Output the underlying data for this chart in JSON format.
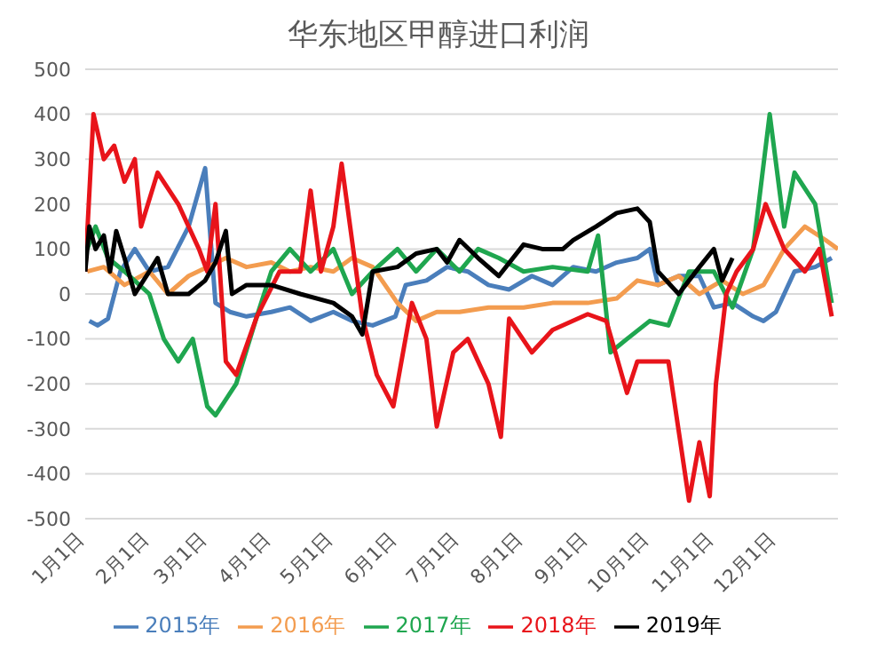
{
  "chart_data": {
    "type": "line",
    "title": "华东地区甲醇进口利润",
    "xlim": [
      "--01-01",
      "--12-31"
    ],
    "xticks": [
      {
        "value": "--01-01",
        "label": "1月1日"
      },
      {
        "value": "--02-01",
        "label": "2月1日"
      },
      {
        "value": "--03-01",
        "label": "3月1日"
      },
      {
        "value": "--04-01",
        "label": "4月1日"
      },
      {
        "value": "--05-01",
        "label": "5月1日"
      },
      {
        "value": "--06-01",
        "label": "6月1日"
      },
      {
        "value": "--07-01",
        "label": "7月1日"
      },
      {
        "value": "--08-01",
        "label": "8月1日"
      },
      {
        "value": "--09-01",
        "label": "9月1日"
      },
      {
        "value": "--10-01",
        "label": "10月1日"
      },
      {
        "value": "--11-01",
        "label": "11月1日"
      },
      {
        "value": "--12-01",
        "label": "12月1日"
      }
    ],
    "ylim": [
      -500,
      500
    ],
    "yticks": [
      -500,
      -400,
      -300,
      -200,
      -100,
      0,
      100,
      200,
      300,
      400,
      500
    ],
    "grid": "y",
    "legend": "bottom",
    "marker": "none",
    "line_style": "solid",
    "series": [
      {
        "name": "2015年",
        "color": "#4a7ebb",
        "x": [
          "--01-03",
          "--01-07",
          "--01-12",
          "--01-18",
          "--01-25",
          "--02-01",
          "--02-10",
          "--02-20",
          "--02-28",
          "--03-05",
          "--03-12",
          "--03-20",
          "--04-01",
          "--04-10",
          "--04-20",
          "--05-01",
          "--05-10",
          "--05-20",
          "--05-31",
          "--06-05",
          "--06-15",
          "--06-25",
          "--07-05",
          "--07-15",
          "--07-25",
          "--08-05",
          "--08-15",
          "--08-25",
          "--09-05",
          "--09-15",
          "--09-25",
          "--10-01",
          "--10-05",
          "--10-15",
          "--10-25",
          "--11-01",
          "--11-10",
          "--11-20",
          "--11-25",
          "--12-01",
          "--12-10",
          "--12-20",
          "--12-28"
        ],
        "values": [
          -60,
          -70,
          -55,
          50,
          100,
          50,
          60,
          150,
          280,
          -20,
          -40,
          -50,
          -40,
          -30,
          -60,
          -40,
          -60,
          -70,
          -50,
          20,
          30,
          60,
          50,
          20,
          10,
          40,
          20,
          60,
          50,
          70,
          80,
          100,
          20,
          40,
          40,
          -30,
          -20,
          -50,
          -60,
          -40,
          50,
          60,
          80
        ]
      },
      {
        "name": "2016年",
        "color": "#f39c4f",
        "x": [
          "--01-02",
          "--01-10",
          "--01-20",
          "--02-01",
          "--02-10",
          "--02-20",
          "--03-01",
          "--03-10",
          "--03-20",
          "--04-01",
          "--04-10",
          "--04-20",
          "--05-01",
          "--05-10",
          "--05-20",
          "--06-01",
          "--06-10",
          "--06-20",
          "--07-01",
          "--07-15",
          "--08-01",
          "--08-15",
          "--09-01",
          "--09-15",
          "--09-25",
          "--10-05",
          "--10-15",
          "--10-25",
          "--11-05",
          "--11-15",
          "--11-25",
          "--12-05",
          "--12-15",
          "--12-25",
          "--12-31"
        ],
        "values": [
          50,
          60,
          20,
          50,
          0,
          40,
          60,
          80,
          60,
          70,
          50,
          60,
          50,
          80,
          60,
          -20,
          -60,
          -40,
          -40,
          -30,
          -30,
          -20,
          -20,
          -10,
          30,
          20,
          40,
          0,
          30,
          0,
          20,
          100,
          150,
          120,
          100
        ]
      },
      {
        "name": "2017年",
        "color": "#1fa64f",
        "x": [
          "--01-02",
          "--01-06",
          "--01-12",
          "--01-20",
          "--02-01",
          "--02-08",
          "--02-15",
          "--02-22",
          "--03-01",
          "--03-05",
          "--03-15",
          "--03-25",
          "--04-01",
          "--04-10",
          "--04-20",
          "--05-01",
          "--05-10",
          "--05-20",
          "--06-01",
          "--06-10",
          "--06-20",
          "--07-01",
          "--07-10",
          "--07-20",
          "--08-01",
          "--08-15",
          "--09-01",
          "--09-06",
          "--09-12",
          "--09-20",
          "--10-01",
          "--10-10",
          "--10-20",
          "--11-01",
          "--11-10",
          "--11-20",
          "--11-28",
          "--12-05",
          "--12-10",
          "--12-20",
          "--12-28"
        ],
        "values": [
          100,
          150,
          80,
          50,
          0,
          -100,
          -150,
          -100,
          -250,
          -270,
          -200,
          -50,
          50,
          100,
          50,
          100,
          0,
          50,
          100,
          50,
          100,
          50,
          100,
          80,
          50,
          60,
          50,
          130,
          -130,
          -100,
          -60,
          -70,
          50,
          50,
          -30,
          100,
          400,
          150,
          270,
          200,
          -20
        ]
      },
      {
        "name": "2018年",
        "color": "#e8141a",
        "x": [
          "--01-01",
          "--01-05",
          "--01-10",
          "--01-15",
          "--01-20",
          "--01-25",
          "--01-28",
          "--02-05",
          "--02-15",
          "--02-25",
          "--03-01",
          "--03-05",
          "--03-10",
          "--03-15",
          "--03-25",
          "--04-05",
          "--04-15",
          "--04-20",
          "--04-25",
          "--05-01",
          "--05-05",
          "--05-15",
          "--05-22",
          "--05-30",
          "--06-08",
          "--06-15",
          "--06-20",
          "--06-28",
          "--07-05",
          "--07-15",
          "--07-21",
          "--07-25",
          "--08-05",
          "--08-15",
          "--09-01",
          "--09-10",
          "--09-20",
          "--09-25",
          "--10-10",
          "--10-20",
          "--10-25",
          "--10-30",
          "--11-02",
          "--11-07",
          "--11-12",
          "--11-20",
          "--11-26",
          "--12-05",
          "--12-15",
          "--12-22",
          "--12-28"
        ],
        "values": [
          50,
          400,
          300,
          330,
          250,
          300,
          150,
          270,
          200,
          100,
          50,
          200,
          -150,
          -180,
          -50,
          50,
          50,
          230,
          50,
          150,
          290,
          -50,
          -180,
          -250,
          -20,
          -100,
          -295,
          -130,
          -100,
          -200,
          -318,
          -55,
          -130,
          -80,
          -45,
          -60,
          -220,
          -150,
          -150,
          -460,
          -330,
          -450,
          -200,
          0,
          50,
          100,
          200,
          100,
          50,
          100,
          -50
        ]
      },
      {
        "name": "2019年",
        "color": "#000000",
        "x": [
          "--01-01",
          "--01-03",
          "--01-06",
          "--01-10",
          "--01-13",
          "--01-16",
          "--01-20",
          "--01-25",
          "--02-01",
          "--02-05",
          "--02-10",
          "--02-20",
          "--02-28",
          "--03-05",
          "--03-10",
          "--03-13",
          "--03-20",
          "--04-01",
          "--04-15",
          "--05-01",
          "--05-10",
          "--05-15",
          "--05-20",
          "--06-01",
          "--06-10",
          "--06-20",
          "--06-25",
          "--07-01",
          "--07-10",
          "--07-20",
          "--08-01",
          "--08-10",
          "--08-20",
          "--08-25",
          "--09-05",
          "--09-15",
          "--09-25",
          "--10-01",
          "--10-05",
          "--10-15",
          "--10-25",
          "--11-01",
          "--11-05",
          "--11-10"
        ],
        "values": [
          50,
          150,
          100,
          130,
          50,
          140,
          80,
          0,
          50,
          80,
          0,
          0,
          30,
          70,
          140,
          0,
          20,
          20,
          0,
          -20,
          -50,
          -90,
          50,
          60,
          90,
          100,
          70,
          120,
          80,
          40,
          110,
          100,
          100,
          120,
          150,
          180,
          190,
          160,
          50,
          0,
          60,
          100,
          30,
          80
        ]
      }
    ]
  }
}
